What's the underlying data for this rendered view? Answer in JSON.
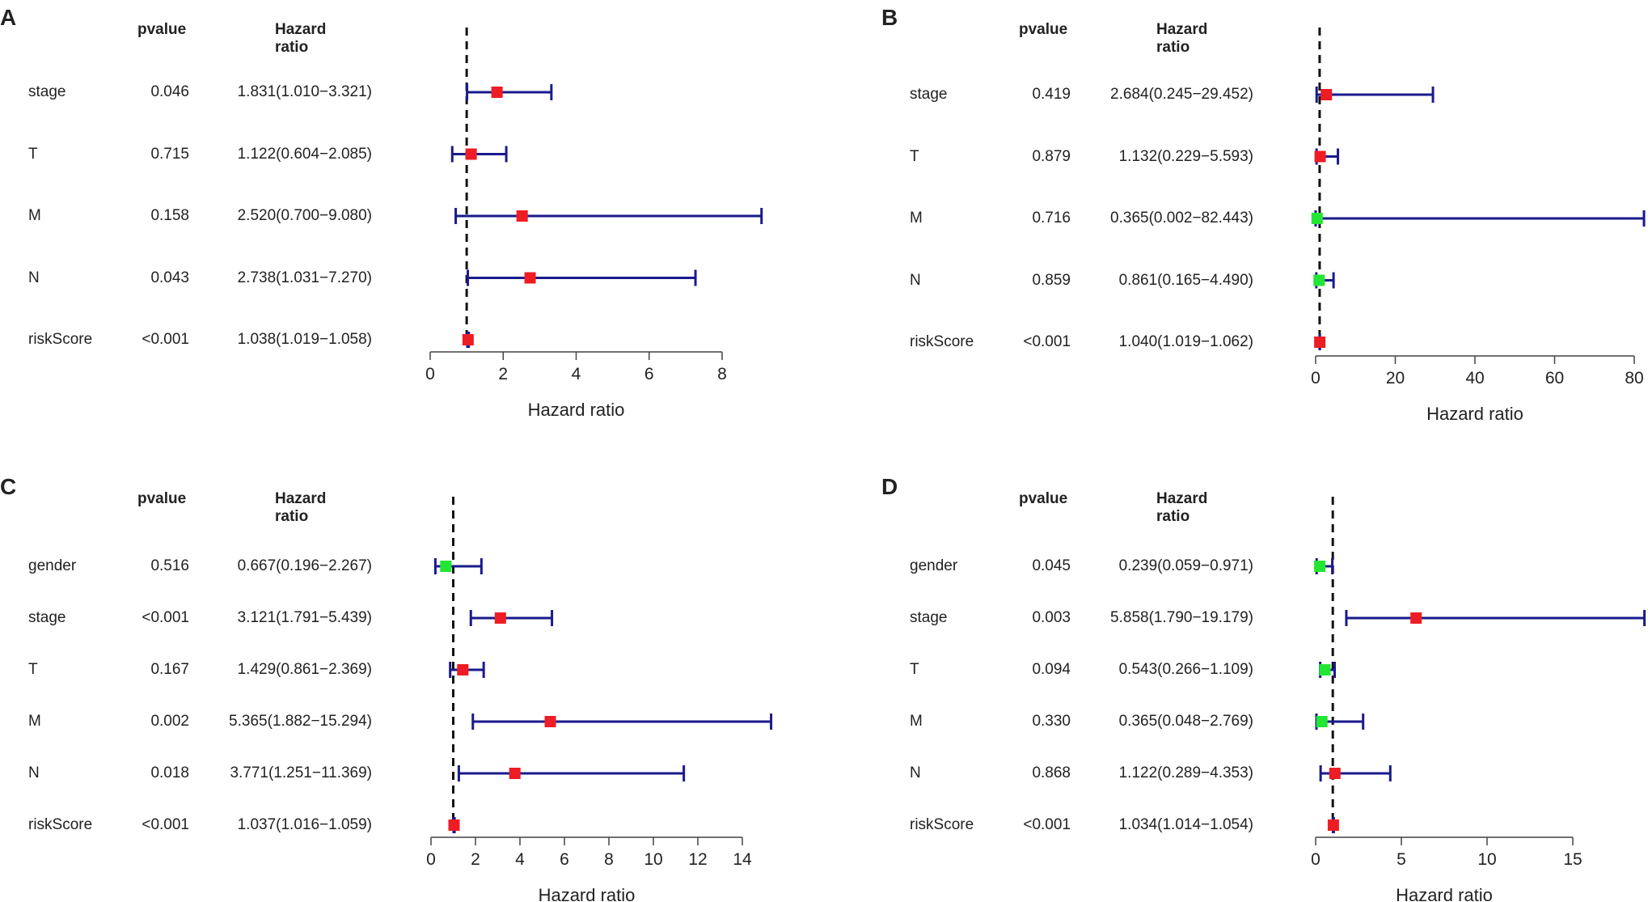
{
  "colors": {
    "ci": "#1a1a8c",
    "risk": "#ee1c25",
    "protective": "#22e633",
    "axis": "#444444"
  },
  "panels": [
    {
      "letter": "A",
      "header_p": "pvalue",
      "header_hr": "Hazard ratio",
      "xlabel": "Hazard ratio",
      "xlim": [
        0,
        8
      ],
      "ticks": [
        0,
        2,
        4,
        6,
        8
      ],
      "ref": 1,
      "rows": [
        {
          "label": "stage",
          "p": "0.046",
          "hr_text": "1.831(1.010−3.321)",
          "hr": 1.831,
          "lo": 1.01,
          "hi": 3.321
        },
        {
          "label": "T",
          "p": "0.715",
          "hr_text": "1.122(0.604−2.085)",
          "hr": 1.122,
          "lo": 0.604,
          "hi": 2.085
        },
        {
          "label": "M",
          "p": "0.158",
          "hr_text": "2.520(0.700−9.080)",
          "hr": 2.52,
          "lo": 0.7,
          "hi": 9.08
        },
        {
          "label": "N",
          "p": "0.043",
          "hr_text": "2.738(1.031−7.270)",
          "hr": 2.738,
          "lo": 1.031,
          "hi": 7.27
        },
        {
          "label": "riskScore",
          "p": "<0.001",
          "hr_text": "1.038(1.019−1.058)",
          "hr": 1.038,
          "lo": 1.019,
          "hi": 1.058
        }
      ]
    },
    {
      "letter": "B",
      "header_p": "pvalue",
      "header_hr": "Hazard ratio",
      "xlabel": "Hazard ratio",
      "xlim": [
        0,
        80
      ],
      "ticks": [
        0,
        20,
        40,
        60,
        80
      ],
      "ref": 1,
      "rows": [
        {
          "label": "stage",
          "p": "0.419",
          "hr_text": "2.684(0.245−29.452)",
          "hr": 2.684,
          "lo": 0.245,
          "hi": 29.452
        },
        {
          "label": "T",
          "p": "0.879",
          "hr_text": "1.132(0.229−5.593)",
          "hr": 1.132,
          "lo": 0.229,
          "hi": 5.593
        },
        {
          "label": "M",
          "p": "0.716",
          "hr_text": "0.365(0.002−82.443)",
          "hr": 0.365,
          "lo": 0.002,
          "hi": 82.443
        },
        {
          "label": "N",
          "p": "0.859",
          "hr_text": "0.861(0.165−4.490)",
          "hr": 0.861,
          "lo": 0.165,
          "hi": 4.49
        },
        {
          "label": "riskScore",
          "p": "<0.001",
          "hr_text": "1.040(1.019−1.062)",
          "hr": 1.04,
          "lo": 1.019,
          "hi": 1.062
        }
      ]
    },
    {
      "letter": "C",
      "header_p": "pvalue",
      "header_hr": "Hazard ratio",
      "xlabel": "Hazard ratio",
      "xlim": [
        0,
        14
      ],
      "ticks": [
        0,
        2,
        4,
        6,
        8,
        10,
        12,
        14
      ],
      "ref": 1,
      "rows": [
        {
          "label": "gender",
          "p": "0.516",
          "hr_text": "0.667(0.196−2.267)",
          "hr": 0.667,
          "lo": 0.196,
          "hi": 2.267
        },
        {
          "label": "stage",
          "p": "<0.001",
          "hr_text": "3.121(1.791−5.439)",
          "hr": 3.121,
          "lo": 1.791,
          "hi": 5.439
        },
        {
          "label": "T",
          "p": "0.167",
          "hr_text": "1.429(0.861−2.369)",
          "hr": 1.429,
          "lo": 0.861,
          "hi": 2.369
        },
        {
          "label": "M",
          "p": "0.002",
          "hr_text": "5.365(1.882−15.294)",
          "hr": 5.365,
          "lo": 1.882,
          "hi": 15.294
        },
        {
          "label": "N",
          "p": "0.018",
          "hr_text": "3.771(1.251−11.369)",
          "hr": 3.771,
          "lo": 1.251,
          "hi": 11.369
        },
        {
          "label": "riskScore",
          "p": "<0.001",
          "hr_text": "1.037(1.016−1.059)",
          "hr": 1.037,
          "lo": 1.016,
          "hi": 1.059
        }
      ]
    },
    {
      "letter": "D",
      "header_p": "pvalue",
      "header_hr": "Hazard ratio",
      "xlabel": "Hazard ratio",
      "xlim": [
        0,
        15
      ],
      "ticks": [
        0,
        5,
        10,
        15
      ],
      "ref": 1,
      "rows": [
        {
          "label": "gender",
          "p": "0.045",
          "hr_text": "0.239(0.059−0.971)",
          "hr": 0.239,
          "lo": 0.059,
          "hi": 0.971
        },
        {
          "label": "stage",
          "p": "0.003",
          "hr_text": "5.858(1.790−19.179)",
          "hr": 5.858,
          "lo": 1.79,
          "hi": 19.179
        },
        {
          "label": "T",
          "p": "0.094",
          "hr_text": "0.543(0.266−1.109)",
          "hr": 0.543,
          "lo": 0.266,
          "hi": 1.109
        },
        {
          "label": "M",
          "p": "0.330",
          "hr_text": "0.365(0.048−2.769)",
          "hr": 0.365,
          "lo": 0.048,
          "hi": 2.769
        },
        {
          "label": "N",
          "p": "0.868",
          "hr_text": "1.122(0.289−4.353)",
          "hr": 1.122,
          "lo": 0.289,
          "hi": 4.353
        },
        {
          "label": "riskScore",
          "p": "<0.001",
          "hr_text": "1.034(1.014−1.054)",
          "hr": 1.034,
          "lo": 1.014,
          "hi": 1.054
        }
      ]
    }
  ],
  "chart_data": [
    {
      "type": "forest",
      "panel": "A",
      "xlabel": "Hazard ratio",
      "xlim": [
        0,
        8
      ],
      "reference_line": 1,
      "categories": [
        "stage",
        "T",
        "M",
        "N",
        "riskScore"
      ],
      "series": [
        {
          "name": "HR",
          "values": [
            1.831,
            1.122,
            2.52,
            2.738,
            1.038
          ]
        },
        {
          "name": "CI lower",
          "values": [
            1.01,
            0.604,
            0.7,
            1.031,
            1.019
          ]
        },
        {
          "name": "CI upper",
          "values": [
            3.321,
            2.085,
            9.08,
            7.27,
            1.058
          ]
        }
      ]
    },
    {
      "type": "forest",
      "panel": "B",
      "xlabel": "Hazard ratio",
      "xlim": [
        0,
        80
      ],
      "reference_line": 1,
      "categories": [
        "stage",
        "T",
        "M",
        "N",
        "riskScore"
      ],
      "series": [
        {
          "name": "HR",
          "values": [
            2.684,
            1.132,
            0.365,
            0.861,
            1.04
          ]
        },
        {
          "name": "CI lower",
          "values": [
            0.245,
            0.229,
            0.002,
            0.165,
            1.019
          ]
        },
        {
          "name": "CI upper",
          "values": [
            29.452,
            5.593,
            82.443,
            4.49,
            1.062
          ]
        }
      ]
    },
    {
      "type": "forest",
      "panel": "C",
      "xlabel": "Hazard ratio",
      "xlim": [
        0,
        14
      ],
      "reference_line": 1,
      "categories": [
        "gender",
        "stage",
        "T",
        "M",
        "N",
        "riskScore"
      ],
      "series": [
        {
          "name": "HR",
          "values": [
            0.667,
            3.121,
            1.429,
            5.365,
            3.771,
            1.037
          ]
        },
        {
          "name": "CI lower",
          "values": [
            0.196,
            1.791,
            0.861,
            1.882,
            1.251,
            1.016
          ]
        },
        {
          "name": "CI upper",
          "values": [
            2.267,
            5.439,
            2.369,
            15.294,
            11.369,
            1.059
          ]
        }
      ]
    },
    {
      "type": "forest",
      "panel": "D",
      "xlabel": "Hazard ratio",
      "xlim": [
        0,
        15
      ],
      "reference_line": 1,
      "categories": [
        "gender",
        "stage",
        "T",
        "M",
        "N",
        "riskScore"
      ],
      "series": [
        {
          "name": "HR",
          "values": [
            0.239,
            5.858,
            0.543,
            0.365,
            1.122,
            1.034
          ]
        },
        {
          "name": "CI lower",
          "values": [
            0.059,
            1.79,
            0.266,
            0.048,
            0.289,
            1.014
          ]
        },
        {
          "name": "CI upper",
          "values": [
            0.971,
            19.179,
            1.109,
            2.769,
            4.353,
            1.054
          ]
        }
      ]
    }
  ]
}
